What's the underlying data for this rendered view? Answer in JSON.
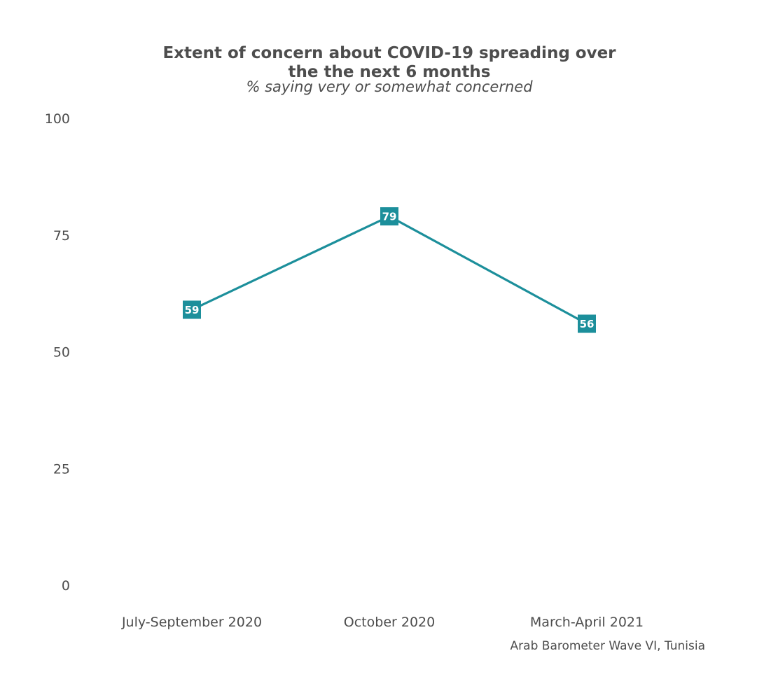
{
  "chart_data": {
    "type": "line",
    "title_lines": [
      "Extent of concern about COVID-19 spreading over",
      "the the next 6 months"
    ],
    "subtitle": "% saying very or somewhat concerned",
    "caption": "Arab Barometer Wave VI, Tunisia",
    "categories": [
      "July-September 2020",
      "October 2020",
      "March-April 2021"
    ],
    "values": [
      59,
      79,
      56
    ],
    "value_labels": [
      "59",
      "79",
      "56"
    ],
    "ylim": [
      0,
      100
    ],
    "yticks": [
      0,
      25,
      50,
      75,
      100
    ],
    "ytick_labels": [
      "0",
      "25",
      "50",
      "75",
      "100"
    ],
    "grid": false,
    "legend": "none",
    "colors": {
      "series": "#1c8f9b",
      "text": "#4d4d4d",
      "label_text": "#ffffff"
    }
  }
}
